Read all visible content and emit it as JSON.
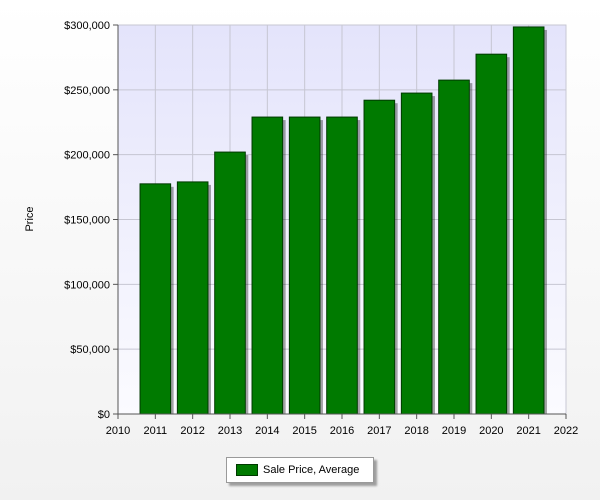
{
  "chart_data": {
    "type": "bar",
    "ylabel": "Price",
    "xlabel": "",
    "categories": [
      "2011",
      "2012",
      "2013",
      "2014",
      "2015",
      "2016",
      "2017",
      "2018",
      "2019",
      "2020",
      "2021"
    ],
    "series": [
      {
        "name": "Sale Price, Average",
        "color": "#007a00",
        "values": [
          177500,
          179000,
          202000,
          229000,
          229000,
          229000,
          242000,
          247500,
          257500,
          277500,
          298500
        ]
      }
    ],
    "x_ticks": [
      "2010",
      "2011",
      "2012",
      "2013",
      "2014",
      "2015",
      "2016",
      "2017",
      "2018",
      "2019",
      "2020",
      "2021",
      "2022"
    ],
    "y_ticks": [
      "$0",
      "$50,000",
      "$100,000",
      "$150,000",
      "$200,000",
      "$250,000",
      "$300,000"
    ],
    "ylim": [
      0,
      300000
    ],
    "xlim": [
      2010,
      2022
    ],
    "grid": true,
    "legend_position": "bottom-center",
    "plot_background": "#e8e8fa"
  }
}
